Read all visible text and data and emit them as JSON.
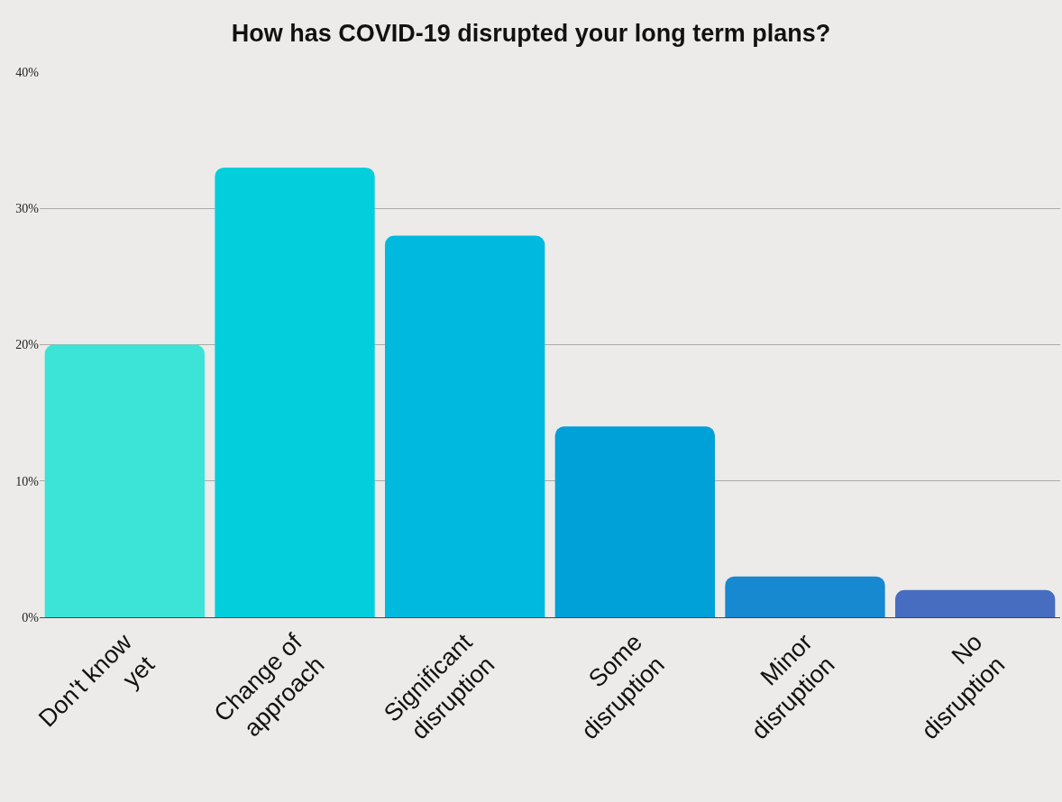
{
  "chart_data": {
    "type": "bar",
    "title": "How has COVID-19 disrupted your long term plans?",
    "categories": [
      "Don't know yet",
      "Change of approach",
      "Significant disruption",
      "Some disruption",
      "Minor disruption",
      "No disruption"
    ],
    "values": [
      20,
      33,
      28,
      14,
      3,
      2
    ],
    "colors": [
      "#3be4d6",
      "#03cfdc",
      "#00b9df",
      "#00a0d9",
      "#1689d0",
      "#466dbf"
    ],
    "ylim": [
      0,
      40
    ],
    "yticks": [
      {
        "value": 0,
        "label": "0%"
      },
      {
        "value": 10,
        "label": "10%"
      },
      {
        "value": 20,
        "label": "20%"
      },
      {
        "value": 30,
        "label": "30%"
      },
      {
        "value": 40,
        "label": "40%"
      }
    ],
    "grid": "y"
  }
}
